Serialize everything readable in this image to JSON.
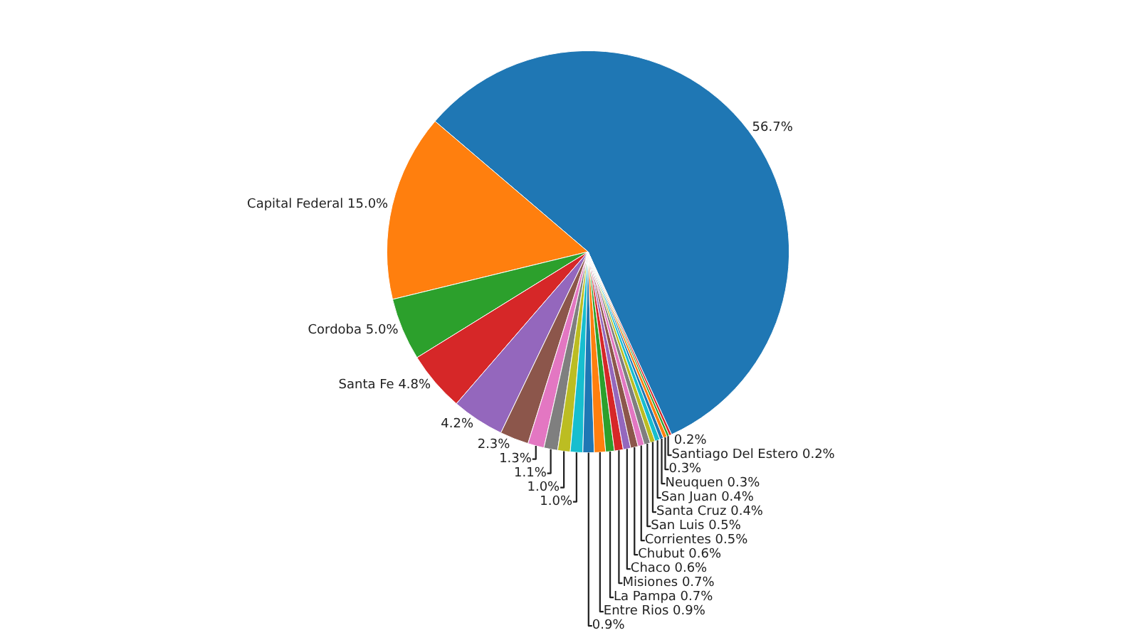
{
  "chart_data": {
    "type": "pie",
    "categories": [
      null,
      "Capital Federal",
      "Cordoba",
      "Santa Fe",
      null,
      null,
      null,
      null,
      null,
      null,
      null,
      "Entre Rios",
      "La Pampa",
      "Misiones",
      "Chaco",
      "Chubut",
      "Corrientes",
      "San Luis",
      "Santa Cruz",
      "San Juan",
      "Neuquen",
      null,
      "Santiago Del Estero",
      null
    ],
    "values": [
      56.7,
      15.0,
      5.0,
      4.8,
      4.2,
      2.3,
      1.3,
      1.1,
      1.0,
      1.0,
      0.9,
      0.9,
      0.7,
      0.7,
      0.6,
      0.6,
      0.5,
      0.5,
      0.4,
      0.4,
      0.3,
      0.3,
      0.2,
      0.2
    ],
    "value_labels": [
      "56.7%",
      "15.0%",
      "5.0%",
      "4.8%",
      "4.2%",
      "2.3%",
      "1.3%",
      "1.1%",
      "1.0%",
      "1.0%",
      "0.9%",
      "0.9%",
      "0.7%",
      "0.7%",
      "0.6%",
      "0.6%",
      "0.5%",
      "0.5%",
      "0.4%",
      "0.4%",
      "0.3%",
      "0.3%",
      "0.2%",
      "0.2%"
    ],
    "colors": [
      "#1f77b4",
      "#ff7f0e",
      "#2ca02c",
      "#d62728",
      "#9467bd",
      "#8c564b",
      "#e377c2",
      "#7f7f7f",
      "#bcbd22",
      "#17becf",
      "#1f77b4",
      "#ff7f0e",
      "#2ca02c",
      "#d62728",
      "#9467bd",
      "#8c564b",
      "#e377c2",
      "#7f7f7f",
      "#bcbd22",
      "#17becf",
      "#1f77b4",
      "#ff7f0e",
      "#2ca02c",
      "#d62728"
    ]
  }
}
